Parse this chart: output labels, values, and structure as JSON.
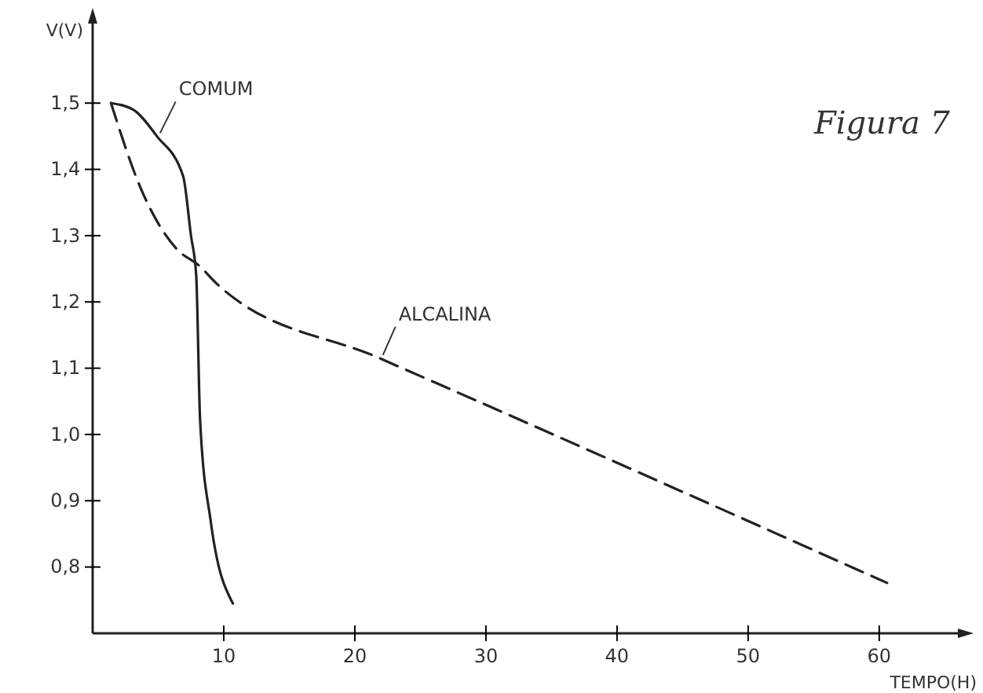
{
  "chart_data": {
    "type": "line",
    "xlabel": "TEMPO(H)",
    "ylabel": "V(V)",
    "annotations": [
      "Figura 7"
    ],
    "xlim": [
      0,
      66
    ],
    "ylim": [
      0.7,
      1.62
    ],
    "xticks": [
      10,
      20,
      30,
      40,
      50,
      60
    ],
    "yticks": [
      {
        "value": 0.8,
        "label": "0,8"
      },
      {
        "value": 0.9,
        "label": "0,9"
      },
      {
        "value": 1.0,
        "label": "1,0"
      },
      {
        "value": 1.1,
        "label": "1,1"
      },
      {
        "value": 1.2,
        "label": "1,2"
      },
      {
        "value": 1.3,
        "label": "1,3"
      },
      {
        "value": 1.4,
        "label": "1,4"
      },
      {
        "value": 1.5,
        "label": "1,5"
      }
    ],
    "grid": false,
    "legend": false,
    "marker": "none",
    "series": [
      {
        "name": "COMUM",
        "color": "#222222",
        "line_style": "solid",
        "x": [
          1.4,
          3.1,
          4.9,
          6.9,
          7.5,
          7.9,
          8.2,
          9.0,
          10.7
        ],
        "values": [
          1.5,
          1.49,
          1.45,
          1.39,
          1.3,
          1.24,
          1.02,
          0.87,
          0.745
        ]
      },
      {
        "name": "ALCALINA",
        "color": "#222222",
        "line_style": "dashed",
        "x": [
          1.4,
          3.7,
          6.4,
          8.1,
          9.6,
          21.9,
          28.7,
          60.6
        ],
        "values": [
          1.5,
          1.37,
          1.28,
          1.255,
          1.225,
          1.115,
          1.056,
          0.776
        ]
      }
    ]
  }
}
